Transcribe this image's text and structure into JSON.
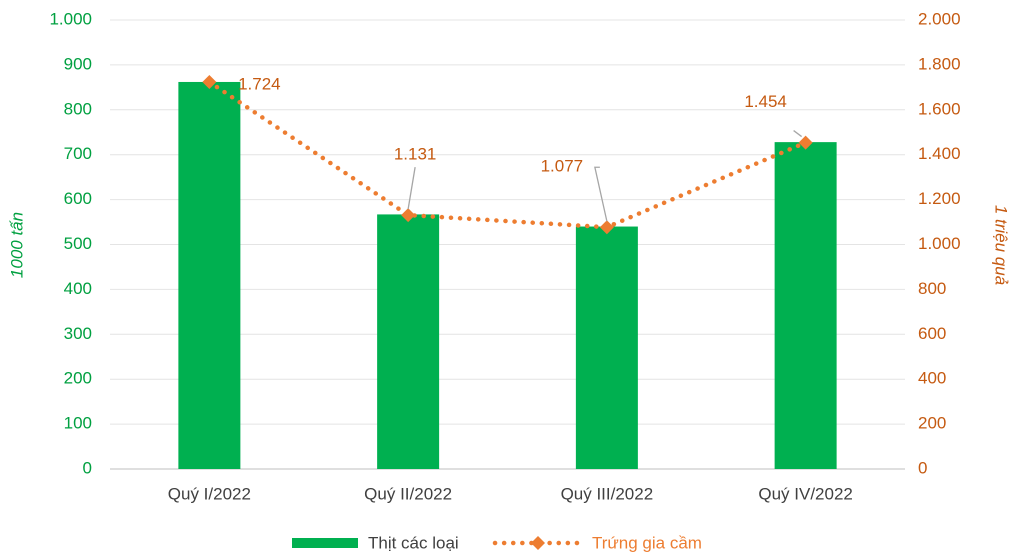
{
  "chart_data": {
    "type": "bar_line",
    "categories": [
      "Quý I/2022",
      "Quý II/2022",
      "Quý III/2022",
      "Quý IV/2022"
    ],
    "ylabel": "1000 tấn",
    "y2label": "1 triệu quả",
    "series": [
      {
        "name": "Thịt các loại",
        "type": "bar",
        "color": "#00b050",
        "axis": "y",
        "values": [
          862,
          567,
          540,
          728
        ]
      },
      {
        "name": "Trứng gia cầm",
        "type": "line",
        "color": "#ed7d31",
        "axis": "y2",
        "values": [
          1724,
          1131,
          1077,
          1454
        ],
        "value_labels": [
          "1.724",
          "1.131",
          "1.077",
          "1.454"
        ]
      }
    ],
    "ylim": [
      0,
      1000
    ],
    "yticks": [
      0,
      100,
      200,
      300,
      400,
      500,
      600,
      700,
      800,
      900,
      {
        "value": 1000,
        "label": "1.000"
      }
    ],
    "y2lim": [
      0,
      2000
    ],
    "y2ticks": [
      0,
      200,
      400,
      600,
      800,
      {
        "value": 1000,
        "label": "1.000"
      },
      {
        "value": 1200,
        "label": "1.200"
      },
      {
        "value": 1400,
        "label": "1.400"
      },
      {
        "value": 1600,
        "label": "1.600"
      },
      {
        "value": 1800,
        "label": "1.800"
      },
      {
        "value": 2000,
        "label": "2.000"
      }
    ],
    "grid": true,
    "legend": "bottom"
  }
}
